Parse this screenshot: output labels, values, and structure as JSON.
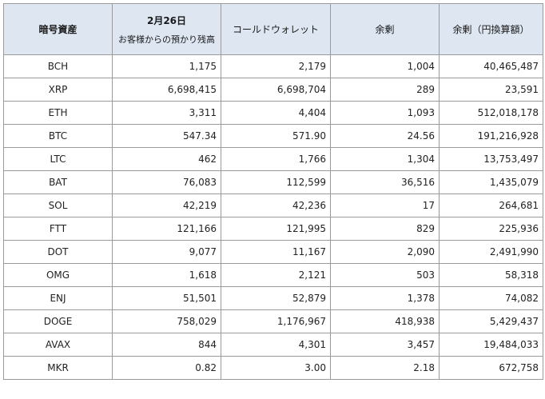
{
  "table": {
    "headers": {
      "asset": "暗号資産",
      "date_line1": "2月26日",
      "date_line2": "お客様からの預かり残高",
      "cold": "コールドウォレット",
      "surplus": "余剰",
      "surplus_jpy": "余剰（円換算額）"
    },
    "rows": [
      {
        "asset": "BCH",
        "custody": "1,175",
        "cold": "2,179",
        "surplus": "1,004",
        "jpy": "40,465,487"
      },
      {
        "asset": "XRP",
        "custody": "6,698,415",
        "cold": "6,698,704",
        "surplus": "289",
        "jpy": "23,591"
      },
      {
        "asset": "ETH",
        "custody": "3,311",
        "cold": "4,404",
        "surplus": "1,093",
        "jpy": "512,018,178"
      },
      {
        "asset": "BTC",
        "custody": "547.34",
        "cold": "571.90",
        "surplus": "24.56",
        "jpy": "191,216,928"
      },
      {
        "asset": "LTC",
        "custody": "462",
        "cold": "1,766",
        "surplus": "1,304",
        "jpy": "13,753,497"
      },
      {
        "asset": "BAT",
        "custody": "76,083",
        "cold": "112,599",
        "surplus": "36,516",
        "jpy": "1,435,079"
      },
      {
        "asset": "SOL",
        "custody": "42,219",
        "cold": "42,236",
        "surplus": "17",
        "jpy": "264,681"
      },
      {
        "asset": "FTT",
        "custody": "121,166",
        "cold": "121,995",
        "surplus": "829",
        "jpy": "225,936"
      },
      {
        "asset": "DOT",
        "custody": "9,077",
        "cold": "11,167",
        "surplus": "2,090",
        "jpy": "2,491,990"
      },
      {
        "asset": "OMG",
        "custody": "1,618",
        "cold": "2,121",
        "surplus": "503",
        "jpy": "58,318"
      },
      {
        "asset": "ENJ",
        "custody": "51,501",
        "cold": "52,879",
        "surplus": "1,378",
        "jpy": "74,082"
      },
      {
        "asset": "DOGE",
        "custody": "758,029",
        "cold": "1,176,967",
        "surplus": "418,938",
        "jpy": "5,429,437"
      },
      {
        "asset": "AVAX",
        "custody": "844",
        "cold": "4,301",
        "surplus": "3,457",
        "jpy": "19,484,033"
      },
      {
        "asset": "MKR",
        "custody": "0.82",
        "cold": "3.00",
        "surplus": "2.18",
        "jpy": "672,758"
      }
    ]
  },
  "colors": {
    "header_bg": "#dde6f1",
    "border": "#9a9a9a",
    "text": "#222222"
  }
}
